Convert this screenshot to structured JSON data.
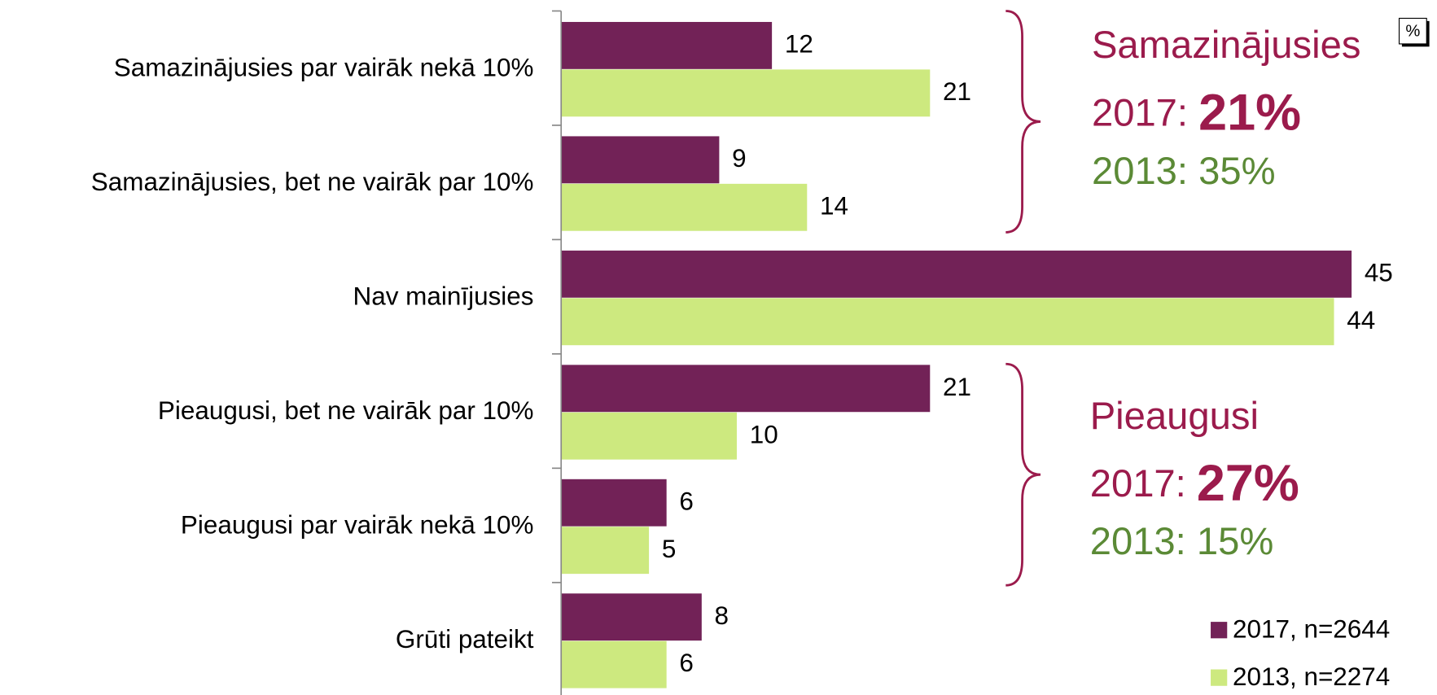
{
  "chart_data": {
    "type": "bar",
    "orientation": "horizontal",
    "categories": [
      "Samazinājusies par vairāk nekā 10%",
      "Samazinājusies, bet ne vairāk par 10%",
      "Nav mainījusies",
      "Pieaugusi, bet ne vairāk par 10%",
      "Pieaugusi par vairāk nekā 10%",
      "Grūti pateikt"
    ],
    "series": [
      {
        "name": "2017, n=2644",
        "color": "#722257",
        "values": [
          12,
          9,
          45,
          21,
          6,
          8
        ]
      },
      {
        "name": "2013, n=2274",
        "color": "#cde97f",
        "values": [
          21,
          14,
          44,
          10,
          5,
          6
        ]
      }
    ],
    "xlim": [
      0,
      45
    ],
    "unit_label": "%",
    "legend": "bottom-right",
    "annotations": [
      {
        "title": "Samazinājusies",
        "line1_label": "2017:",
        "line1_value": "21%",
        "line2": "2013: 35%"
      },
      {
        "title": "Pieaugusi",
        "line1_label": "2017:",
        "line1_value": "27%",
        "line2": "2013: 15%"
      }
    ]
  }
}
